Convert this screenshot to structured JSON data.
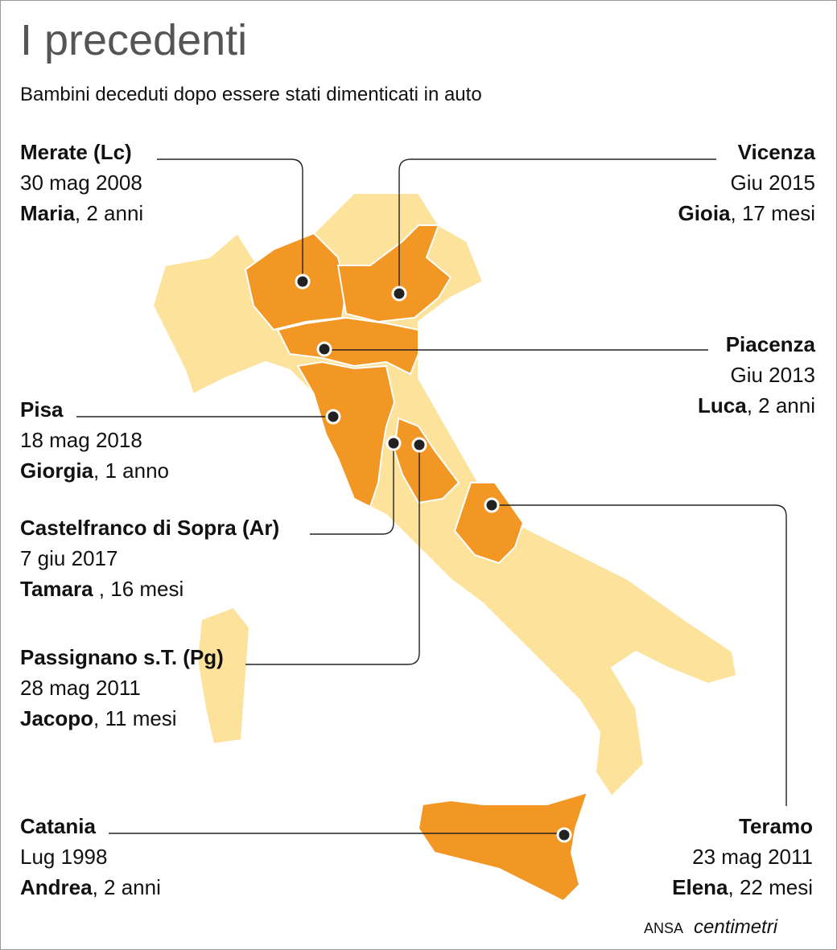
{
  "header": {
    "title": "I precedenti",
    "subtitle": "Bambini deceduti dopo essere stati dimenticati in auto"
  },
  "cases": [
    {
      "place": "Merate (Lc)",
      "date": "30 mag 2008",
      "name": "Maria",
      "age": ", 2 anni"
    },
    {
      "place": "Vicenza",
      "date": "Giu 2015",
      "name": "Gioia",
      "age": ", 17 mesi"
    },
    {
      "place": "Piacenza",
      "date": "Giu 2013",
      "name": "Luca",
      "age": ", 2 anni"
    },
    {
      "place": "Pisa",
      "date": "18 mag 2018",
      "name": "Giorgia",
      "age": ", 1 anno"
    },
    {
      "place": "Castelfranco di Sopra (Ar)",
      "date": "7 giu 2017",
      "name": "Tamara",
      "age": " , 16 mesi"
    },
    {
      "place": "Passignano s.T. (Pg)",
      "date": "28 mag 2011",
      "name": "Jacopo",
      "age": ", 11 mesi"
    },
    {
      "place": "Catania",
      "date": "Lug 1998",
      "name": "Andrea",
      "age": ", 2 anni"
    },
    {
      "place": "Teramo",
      "date": "23 mag 2011",
      "name": "Elena",
      "age": ", 22 mesi"
    }
  ],
  "credit": {
    "agency": "ANSA",
    "brand": "centimetri"
  }
}
